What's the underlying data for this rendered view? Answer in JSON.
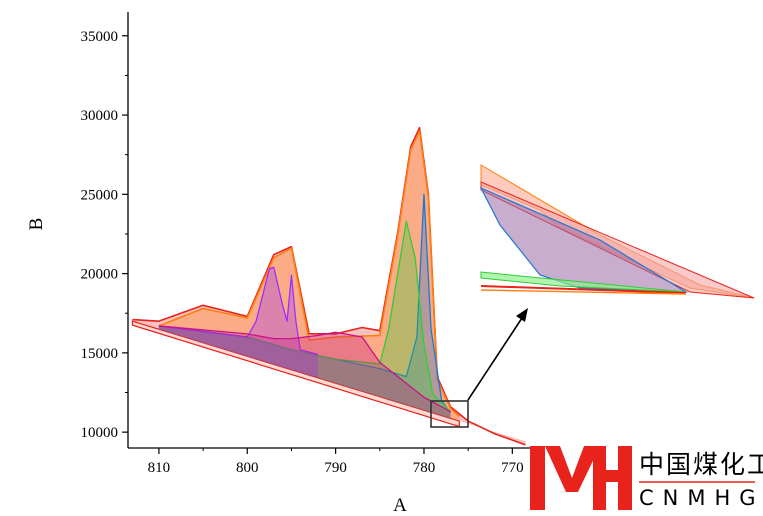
{
  "chart_data": {
    "type": "area",
    "xlabel": "A",
    "ylabel": "B",
    "xlim": [
      813.5,
      768
    ],
    "ylim": [
      9000,
      36500
    ],
    "x_reversed": true,
    "x_ticks": [
      810,
      800,
      790,
      780,
      770
    ],
    "y_ticks": [
      10000,
      15000,
      20000,
      25000,
      30000,
      35000
    ],
    "grid": false,
    "legend": "none",
    "series": [
      {
        "color": "#e8231c",
        "x": [
          813,
          810,
          805,
          800,
          797,
          795,
          793,
          790,
          787,
          785,
          783,
          781.5,
          780.5,
          779.5,
          778.5,
          777,
          775,
          772,
          770,
          768.5
        ],
        "y": [
          17100,
          17000,
          18000,
          17300,
          21200,
          21700,
          16200,
          16200,
          16600,
          16400,
          22500,
          28000,
          29200,
          25000,
          13500,
          11600,
          10700,
          9900,
          9500,
          9200
        ]
      },
      {
        "color": "#ff7f0e",
        "x": [
          810,
          805,
          800,
          797,
          795,
          793,
          790,
          785,
          783,
          781.5,
          780.5,
          779.5,
          778.5,
          777,
          776
        ],
        "y": [
          16700,
          17800,
          17200,
          21000,
          21600,
          15800,
          16000,
          16100,
          22300,
          27800,
          29000,
          24800,
          13300,
          11500,
          11000
        ]
      },
      {
        "color": "#1f77d4",
        "x": [
          810,
          800,
          795,
          790,
          785,
          782,
          780.8,
          780,
          779.2,
          778,
          777
        ],
        "y": [
          16700,
          16000,
          15200,
          14600,
          14000,
          13500,
          16000,
          25000,
          16500,
          12000,
          11200
        ]
      },
      {
        "color": "#32cd32",
        "x": [
          810,
          800,
          795,
          790,
          785,
          784,
          782,
          781,
          780,
          779,
          777
        ],
        "y": [
          16700,
          16000,
          15200,
          14600,
          14300,
          16500,
          23300,
          21000,
          15500,
          12400,
          11300
        ]
      },
      {
        "color": "#9b30ff",
        "x": [
          810,
          800,
          799,
          797.5,
          797,
          796,
          795.5,
          795,
          794.5,
          794,
          792
        ],
        "y": [
          16700,
          16000,
          17000,
          20300,
          20400,
          18000,
          17000,
          19900,
          17000,
          15200,
          14900
        ]
      },
      {
        "color": "#c71585",
        "x": [
          810,
          800,
          797,
          795,
          792,
          790,
          787,
          785,
          780,
          777
        ],
        "y": [
          16700,
          16200,
          15900,
          15900,
          16100,
          16300,
          16000,
          14400,
          12200,
          11300
        ]
      }
    ],
    "baseline": {
      "color": "#e8231c",
      "x": [
        813,
        776
      ],
      "y": [
        17000,
        10700
      ]
    },
    "annotations": [
      "inset zoom of region near 779-775, 10500-12000"
    ]
  },
  "logo": {
    "mark": "CMH",
    "chinese": "中国煤化工",
    "english": "CNMHG",
    "color": "#e8231c"
  }
}
